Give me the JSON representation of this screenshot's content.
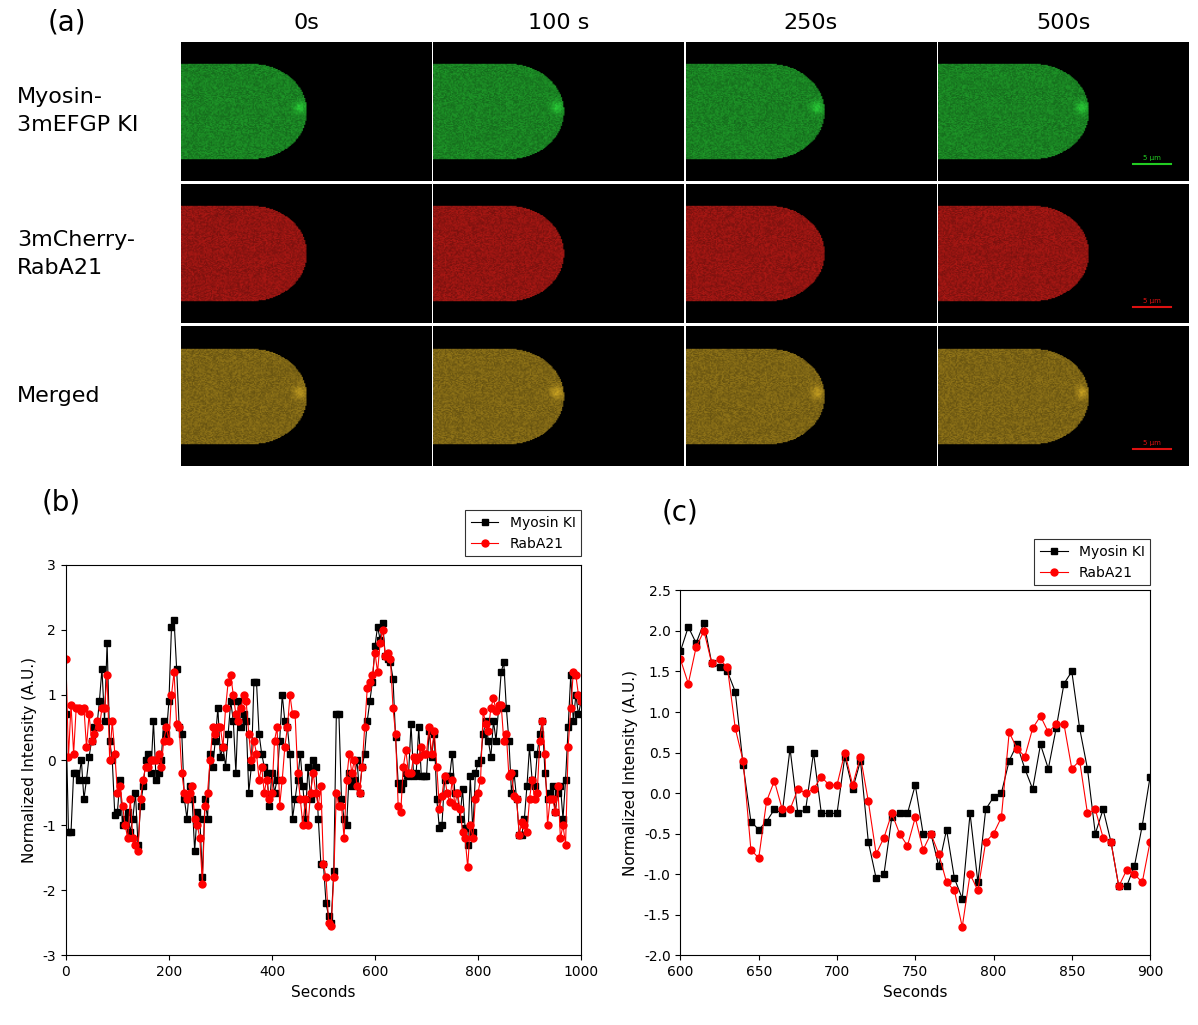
{
  "panels": [
    "(a)",
    "(b)",
    "(c)"
  ],
  "images": {
    "columns": [
      "0s",
      "100 s",
      "250s",
      "500s"
    ],
    "rows": [
      "Myosin-\n3mEFGP KI",
      "3mCherry-\nRabA21",
      "Merged"
    ],
    "scale_bar": "5 µm"
  },
  "chart_data": [
    {
      "type": "line",
      "xlabel": "Seconds",
      "ylabel": "Normalized Intensity (A.U.)",
      "xlim": [
        0,
        1000
      ],
      "ylim": [
        -3,
        3
      ],
      "xticks": [
        0,
        200,
        400,
        600,
        800,
        1000
      ],
      "yticks": [
        -3,
        -2,
        -1,
        0,
        1,
        2,
        3
      ],
      "legend": "upper right",
      "x": [
        0,
        5,
        10,
        15,
        20,
        25,
        30,
        35,
        40,
        45,
        50,
        55,
        60,
        65,
        70,
        75,
        80,
        85,
        90,
        95,
        100,
        105,
        110,
        115,
        120,
        125,
        130,
        135,
        140,
        145,
        150,
        155,
        160,
        165,
        170,
        175,
        180,
        185,
        190,
        195,
        200,
        205,
        210,
        215,
        220,
        225,
        230,
        235,
        240,
        245,
        250,
        255,
        260,
        265,
        270,
        275,
        280,
        285,
        290,
        295,
        300,
        305,
        310,
        315,
        320,
        325,
        330,
        335,
        340,
        345,
        350,
        355,
        360,
        365,
        370,
        375,
        380,
        385,
        390,
        395,
        400,
        405,
        410,
        415,
        420,
        425,
        430,
        435,
        440,
        445,
        450,
        455,
        460,
        465,
        470,
        475,
        480,
        485,
        490,
        495,
        500,
        505,
        510,
        515,
        520,
        525,
        530,
        535,
        540,
        545,
        550,
        555,
        560,
        565,
        570,
        575,
        580,
        585,
        590,
        595,
        600,
        605,
        610,
        615,
        620,
        625,
        630,
        635,
        640,
        645,
        650,
        655,
        660,
        665,
        670,
        675,
        680,
        685,
        690,
        695,
        700,
        705,
        710,
        715,
        720,
        725,
        730,
        735,
        740,
        745,
        750,
        755,
        760,
        765,
        770,
        775,
        780,
        785,
        790,
        795,
        800,
        805,
        810,
        815,
        820,
        825,
        830,
        835,
        840,
        845,
        850,
        855,
        860,
        865,
        870,
        875,
        880,
        885,
        890,
        895,
        900,
        905,
        910,
        915,
        920,
        925,
        930,
        935,
        940,
        945,
        950,
        955,
        960,
        965,
        970,
        975,
        980,
        985,
        990,
        995,
        1000
      ],
      "series": [
        {
          "name": "Myosin KI",
          "color": "#000000",
          "marker": "square",
          "values": [
            0.7,
            -1.1,
            -1.1,
            -0.2,
            -0.2,
            -0.3,
            0.0,
            -0.6,
            -0.3,
            0.05,
            0.3,
            0.5,
            0.5,
            0.9,
            1.4,
            0.6,
            1.8,
            0.3,
            0.0,
            -0.85,
            -0.8,
            -0.3,
            -1.0,
            -0.9,
            -0.8,
            -1.1,
            -0.9,
            -0.5,
            -1.3,
            -0.7,
            -0.4,
            0.0,
            0.1,
            -0.2,
            0.6,
            -0.3,
            -0.2,
            0.0,
            0.6,
            0.4,
            0.9,
            2.05,
            2.15,
            1.4,
            0.5,
            0.4,
            -0.6,
            -0.9,
            -0.4,
            -0.6,
            -1.4,
            -0.8,
            -0.9,
            -1.8,
            -0.6,
            -0.9,
            0.1,
            -0.1,
            0.3,
            0.8,
            0.05,
            0.2,
            -0.1,
            0.4,
            0.9,
            0.6,
            -0.2,
            0.9,
            0.5,
            0.7,
            0.6,
            -0.5,
            -0.1,
            1.2,
            1.2,
            0.4,
            0.1,
            -0.1,
            -0.2,
            -0.7,
            -0.2,
            -0.5,
            -0.3,
            0.3,
            1.0,
            0.6,
            0.5,
            0.1,
            -0.9,
            -0.6,
            -0.3,
            0.1,
            -0.4,
            -0.9,
            -0.1,
            -0.6,
            0.0,
            -0.1,
            -0.9,
            -1.6,
            -1.6,
            -2.2,
            -2.4,
            -2.5,
            -1.7,
            0.7,
            0.7,
            -0.6,
            -0.9,
            -1.0,
            -0.2,
            -0.4,
            -0.3,
            0.0,
            -0.5,
            -0.1,
            0.1,
            0.6,
            0.9,
            1.2,
            1.75,
            2.05,
            1.85,
            2.1,
            1.6,
            1.55,
            1.5,
            1.25,
            0.35,
            -0.35,
            -0.45,
            -0.35,
            -0.2,
            -0.25,
            0.55,
            -0.25,
            -0.2,
            0.5,
            -0.25,
            -0.25,
            -0.25,
            0.45,
            0.05,
            0.4,
            -0.6,
            -1.05,
            -1.0,
            -0.3,
            -0.25,
            -0.25,
            0.1,
            -0.5,
            -0.5,
            -0.9,
            -0.45,
            -1.05,
            -1.3,
            -0.25,
            -1.1,
            -0.2,
            -0.05,
            0.0,
            0.4,
            0.6,
            0.3,
            0.05,
            0.6,
            0.3,
            0.8,
            1.35,
            1.5,
            0.8,
            0.3,
            -0.5,
            -0.2,
            -0.6,
            -1.15,
            -1.15,
            -0.9,
            -0.4,
            0.2,
            -0.3,
            -0.4,
            0.1,
            0.4,
            0.6,
            -0.2,
            -0.6,
            -0.5,
            -0.4,
            -0.8,
            -0.5,
            -0.4,
            -0.9,
            -0.3,
            0.5,
            1.3,
            0.6,
            1.0,
            0.7,
            0.9
          ]
        },
        {
          "name": "RabA21",
          "color": "#ff0000",
          "marker": "circle",
          "values": [
            1.55,
            0.05,
            0.85,
            0.1,
            0.8,
            0.8,
            0.75,
            0.8,
            0.2,
            0.7,
            0.3,
            0.4,
            0.6,
            0.5,
            0.8,
            0.8,
            1.3,
            0.0,
            0.6,
            0.1,
            -0.5,
            -0.4,
            -0.7,
            -1.0,
            -1.2,
            -0.6,
            -1.2,
            -1.3,
            -1.4,
            -0.6,
            -0.3,
            -0.1,
            -0.1,
            0.0,
            0.0,
            0.0,
            0.1,
            -0.1,
            0.3,
            0.5,
            0.3,
            1.0,
            1.35,
            0.55,
            0.5,
            -0.2,
            -0.5,
            -0.6,
            -0.5,
            -0.4,
            -0.9,
            -1.0,
            -1.2,
            -1.9,
            -0.7,
            -0.5,
            0.0,
            0.5,
            0.4,
            0.5,
            0.5,
            0.2,
            0.8,
            1.2,
            1.3,
            1.0,
            0.7,
            0.6,
            0.8,
            1.0,
            0.9,
            0.4,
            0.0,
            0.3,
            0.1,
            -0.3,
            -0.1,
            -0.5,
            -0.3,
            -0.6,
            -0.5,
            0.3,
            0.5,
            -0.7,
            -0.3,
            0.2,
            0.5,
            1.0,
            0.7,
            0.7,
            -0.2,
            -0.6,
            -1.0,
            -0.6,
            -1.0,
            -0.5,
            -0.2,
            -0.5,
            -0.7,
            -0.4,
            -1.6,
            -1.8,
            -2.5,
            -2.55,
            -1.8,
            -0.5,
            -0.7,
            -0.7,
            -1.2,
            -0.3,
            0.1,
            -0.2,
            0.0,
            -0.4,
            -0.5,
            -0.1,
            0.5,
            1.1,
            1.2,
            1.3,
            1.65,
            1.35,
            1.8,
            2.0,
            1.6,
            1.65,
            1.55,
            0.8,
            0.4,
            -0.7,
            -0.8,
            -0.1,
            0.15,
            -0.2,
            -0.2,
            0.05,
            0.0,
            0.05,
            0.2,
            0.1,
            0.1,
            0.5,
            0.1,
            0.45,
            -0.1,
            -0.75,
            -0.55,
            -0.25,
            -0.5,
            -0.65,
            -0.3,
            -0.7,
            -0.5,
            -0.75,
            -1.1,
            -1.2,
            -1.65,
            -1.0,
            -1.2,
            -0.6,
            -0.5,
            -0.3,
            0.75,
            0.55,
            0.45,
            0.8,
            0.95,
            0.75,
            0.85,
            0.85,
            0.3,
            0.4,
            -0.25,
            -0.2,
            -0.55,
            -0.6,
            -1.15,
            -0.95,
            -1.0,
            -1.1,
            -0.6,
            -0.3,
            -0.6,
            -0.5,
            0.3,
            0.6,
            0.1,
            -1.0,
            -0.6,
            -0.6,
            -0.8,
            -0.4,
            -1.2,
            -1.0,
            -1.3,
            0.2,
            0.8,
            1.35,
            1.3,
            1.0,
            0.9
          ]
        }
      ]
    },
    {
      "type": "line",
      "xlabel": "Seconds",
      "ylabel": "Normalized Intensity (A.U.)",
      "xlim": [
        600,
        900
      ],
      "ylim": [
        -2,
        2.5
      ],
      "xticks": [
        600,
        650,
        700,
        750,
        800,
        850,
        900
      ],
      "yticks": [
        {
          "value": -2,
          "label": "-2.0"
        },
        -1.5,
        {
          "value": -1,
          "label": "-1.0"
        },
        -0.5,
        {
          "value": 0,
          "label": "0.0"
        },
        0.5,
        {
          "value": 1,
          "label": "1.0"
        },
        1.5,
        {
          "value": 2,
          "label": "2.0"
        },
        2.5
      ],
      "legend": "upper right",
      "x": [
        600,
        605,
        610,
        615,
        620,
        625,
        630,
        635,
        640,
        645,
        650,
        655,
        660,
        665,
        670,
        675,
        680,
        685,
        690,
        695,
        700,
        705,
        710,
        715,
        720,
        725,
        730,
        735,
        740,
        745,
        750,
        755,
        760,
        765,
        770,
        775,
        780,
        785,
        790,
        795,
        800,
        805,
        810,
        815,
        820,
        825,
        830,
        835,
        840,
        845,
        850,
        855,
        860,
        865,
        870,
        875,
        880,
        885,
        890,
        895,
        900
      ],
      "series": [
        {
          "name": "Myosin KI",
          "color": "#000000",
          "marker": "square",
          "values": [
            1.75,
            2.05,
            1.85,
            2.1,
            1.6,
            1.55,
            1.5,
            1.25,
            0.35,
            -0.35,
            -0.45,
            -0.35,
            -0.2,
            -0.25,
            0.55,
            -0.25,
            -0.2,
            0.5,
            -0.25,
            -0.25,
            -0.25,
            0.45,
            0.05,
            0.4,
            -0.6,
            -1.05,
            -1.0,
            -0.3,
            -0.25,
            -0.25,
            0.1,
            -0.5,
            -0.5,
            -0.9,
            -0.45,
            -1.05,
            -1.3,
            -0.25,
            -1.1,
            -0.2,
            -0.05,
            0.0,
            0.4,
            0.6,
            0.3,
            0.05,
            0.6,
            0.3,
            0.8,
            1.35,
            1.5,
            0.8,
            0.3,
            -0.5,
            -0.2,
            -0.6,
            -1.15,
            -1.15,
            -0.9,
            -0.4,
            0.2
          ]
        },
        {
          "name": "RabA21",
          "color": "#ff0000",
          "marker": "circle",
          "values": [
            1.65,
            1.35,
            1.8,
            2.0,
            1.6,
            1.65,
            1.55,
            0.8,
            0.4,
            -0.7,
            -0.8,
            -0.1,
            0.15,
            -0.2,
            -0.2,
            0.05,
            0.0,
            0.05,
            0.2,
            0.1,
            0.1,
            0.5,
            0.1,
            0.45,
            -0.1,
            -0.75,
            -0.55,
            -0.25,
            -0.5,
            -0.65,
            -0.3,
            -0.7,
            -0.5,
            -0.75,
            -1.1,
            -1.2,
            -1.65,
            -1.0,
            -1.2,
            -0.6,
            -0.5,
            -0.3,
            0.75,
            0.55,
            0.45,
            0.8,
            0.95,
            0.75,
            0.85,
            0.85,
            0.3,
            0.4,
            -0.25,
            -0.2,
            -0.55,
            -0.6,
            -1.15,
            -0.95,
            -1.0,
            -1.1,
            -0.6
          ]
        }
      ]
    }
  ]
}
